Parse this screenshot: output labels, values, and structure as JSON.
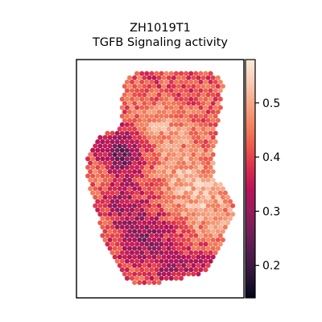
{
  "chart_data": {
    "type": "heatmap",
    "subtype": "spatial hexagonal spot plot",
    "title": [
      "ZH1019T1",
      "TGFB Signaling activity"
    ],
    "xlabel": "",
    "ylabel": "",
    "axis_ticks": false,
    "colormap": "rocket",
    "colorbar": {
      "range": [
        0.14,
        0.58
      ],
      "ticks": [
        0.2,
        0.3,
        0.4,
        0.5
      ],
      "tick_labels": [
        "0.2",
        "0.3",
        "0.4",
        "0.5"
      ]
    },
    "grid": false,
    "value_summary": {
      "typical": 0.43,
      "low_region": "upper-left lobe and lower center",
      "high_region": "upper body and right side"
    }
  },
  "colors": {
    "background": "#ffffff",
    "frame": "#000000",
    "rocket_stops": [
      "#03051a",
      "#2a1636",
      "#4e1b4b",
      "#701f57",
      "#961c5b",
      "#b9125a",
      "#db2e4d",
      "#ed5a4c",
      "#f3845f",
      "#f5a98a",
      "#f8cdb7",
      "#faebdd"
    ]
  }
}
